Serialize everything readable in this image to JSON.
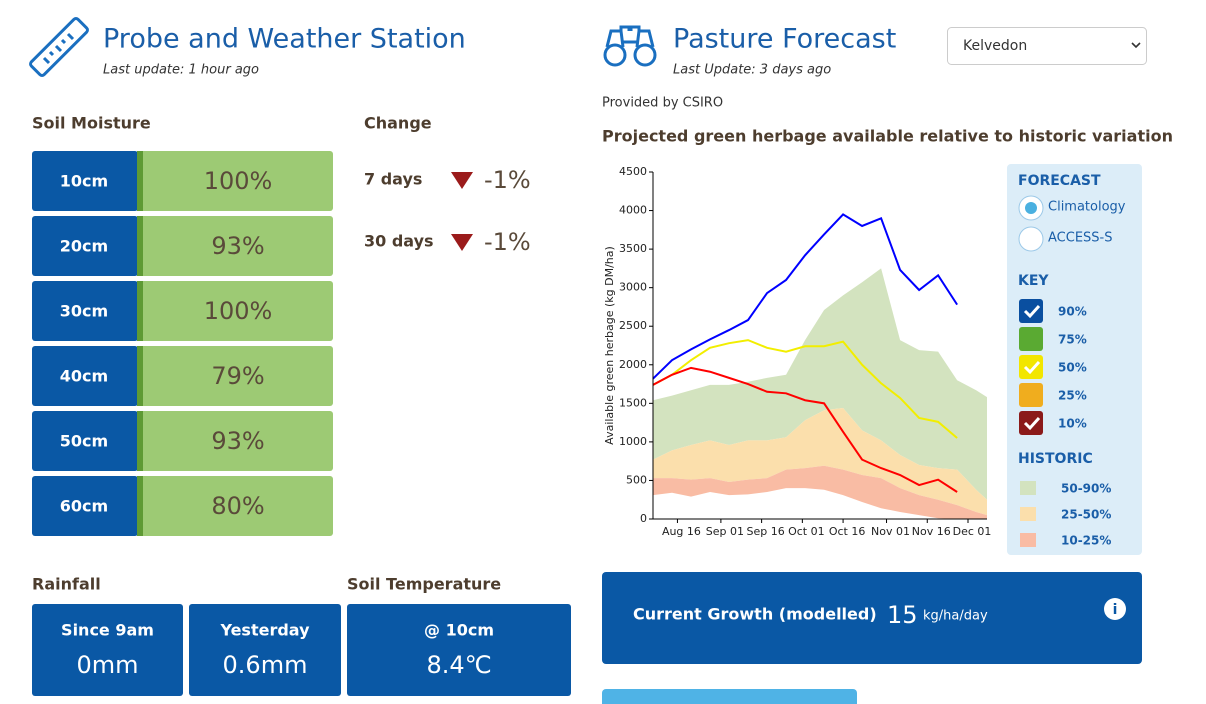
{
  "probe": {
    "title": "Probe and Weather Station",
    "last_update": "Last update: 1 hour ago",
    "soil_moisture": {
      "heading": "Soil Moisture",
      "rows": [
        {
          "depth": "10cm",
          "value": "100%"
        },
        {
          "depth": "20cm",
          "value": "93%"
        },
        {
          "depth": "30cm",
          "value": "100%"
        },
        {
          "depth": "40cm",
          "value": "79%"
        },
        {
          "depth": "50cm",
          "value": "93%"
        },
        {
          "depth": "60cm",
          "value": "80%"
        }
      ]
    },
    "change": {
      "heading": "Change",
      "rows": [
        {
          "period": "7 days",
          "value": "-1%"
        },
        {
          "period": "30 days",
          "value": "-1%"
        }
      ]
    },
    "rainfall": {
      "heading": "Rainfall",
      "cards": [
        {
          "label": "Since 9am",
          "value": "0mm"
        },
        {
          "label": "Yesterday",
          "value": "0.6mm"
        }
      ]
    },
    "soil_temperature": {
      "heading": "Soil Temperature",
      "cards": [
        {
          "label": "@ 10cm",
          "value": "8.4℃"
        }
      ]
    }
  },
  "forecast": {
    "title": "Pasture Forecast",
    "last_update": "Last Update: 3 days ago",
    "location": "Kelvedon",
    "provider": "Provided by CSIRO",
    "current_growth": {
      "label": "Current Growth (modelled)",
      "value": "15",
      "unit": "kg/ha/day",
      "info": "i"
    }
  },
  "chart_data": {
    "type": "line",
    "title": "Projected green herbage available relative to historic variation",
    "y_label": "Available green herbage (kg DM/ha)",
    "x": [
      "Aug 07",
      "Aug 14",
      "Aug 21",
      "Aug 28",
      "Sep 04",
      "Sep 11",
      "Sep 18",
      "Sep 25",
      "Oct 02",
      "Oct 09",
      "Oct 16",
      "Oct 23",
      "Oct 30",
      "Nov 06",
      "Nov 13",
      "Nov 20",
      "Nov 27",
      "Dec 04",
      "Dec 08"
    ],
    "xlim": [
      "Aug 07",
      "Dec 08"
    ],
    "xticks": [
      "Aug 16",
      "Sep 01",
      "Sep 16",
      "Oct 01",
      "Oct 16",
      "Nov 01",
      "Nov 16",
      "Dec 01"
    ],
    "ylim": [
      0,
      4500
    ],
    "yticks": [
      0,
      500,
      1000,
      1500,
      2000,
      2500,
      3000,
      3500,
      4000,
      4500
    ],
    "series": [
      {
        "name": "90%",
        "color": "#0000ff",
        "values": [
          1820,
          2060,
          2200,
          2330,
          2450,
          2580,
          2930,
          3100,
          3420,
          3690,
          3950,
          3800,
          3900,
          3230,
          2970,
          3160,
          2780,
          null,
          null
        ]
      },
      {
        "name": "50%",
        "color": "#f2ee00",
        "values": [
          1740,
          1870,
          2060,
          2220,
          2280,
          2320,
          2220,
          2170,
          2240,
          2240,
          2300,
          2000,
          1760,
          1570,
          1310,
          1260,
          1050,
          null,
          null
        ]
      },
      {
        "name": "10%",
        "color": "#ff0000",
        "values": [
          1740,
          1870,
          1960,
          1910,
          1830,
          1750,
          1650,
          1630,
          1540,
          1500,
          1130,
          770,
          660,
          570,
          440,
          510,
          350,
          null,
          null
        ]
      }
    ],
    "historic": [
      {
        "name": "50-90%",
        "color": "#d3e3bf",
        "low": [
          770,
          890,
          960,
          1020,
          960,
          1020,
          1020,
          1060,
          1280,
          1410,
          1440,
          1150,
          1020,
          830,
          700,
          660,
          640,
          380,
          250
        ],
        "high": [
          1540,
          1600,
          1670,
          1740,
          1740,
          1780,
          1830,
          1870,
          2320,
          2710,
          2900,
          3070,
          3250,
          2320,
          2190,
          2170,
          1800,
          1670,
          1580
        ]
      },
      {
        "name": "25-50%",
        "color": "#fbdfac",
        "low": [
          530,
          530,
          510,
          530,
          480,
          510,
          530,
          640,
          660,
          690,
          640,
          570,
          530,
          400,
          310,
          250,
          180,
          90,
          50
        ],
        "high": [
          770,
          890,
          960,
          1020,
          960,
          1020,
          1020,
          1060,
          1280,
          1410,
          1440,
          1150,
          1020,
          830,
          700,
          660,
          640,
          380,
          250
        ]
      },
      {
        "name": "10-25%",
        "color": "#f9bca4",
        "low": [
          310,
          340,
          290,
          350,
          310,
          320,
          350,
          400,
          400,
          380,
          310,
          220,
          140,
          90,
          50,
          10,
          0,
          0,
          0
        ],
        "high": [
          530,
          530,
          510,
          530,
          480,
          510,
          530,
          640,
          660,
          690,
          640,
          570,
          530,
          400,
          310,
          250,
          180,
          90,
          50
        ]
      }
    ],
    "legend": {
      "forecast_heading": "FORECAST",
      "options": [
        {
          "label": "Climatology",
          "selected": true
        },
        {
          "label": "ACCESS-S",
          "selected": false
        }
      ],
      "key_heading": "KEY",
      "key": [
        {
          "label": "90%",
          "color": "#0a4fa0",
          "checked": true
        },
        {
          "label": "75%",
          "color": "#5aaa32",
          "checked": false
        },
        {
          "label": "50%",
          "color": "#f2e600",
          "checked": true
        },
        {
          "label": "25%",
          "color": "#f0ad1e",
          "checked": false
        },
        {
          "label": "10%",
          "color": "#8b1a1a",
          "checked": true
        }
      ],
      "historic_heading": "HISTORIC"
    }
  }
}
